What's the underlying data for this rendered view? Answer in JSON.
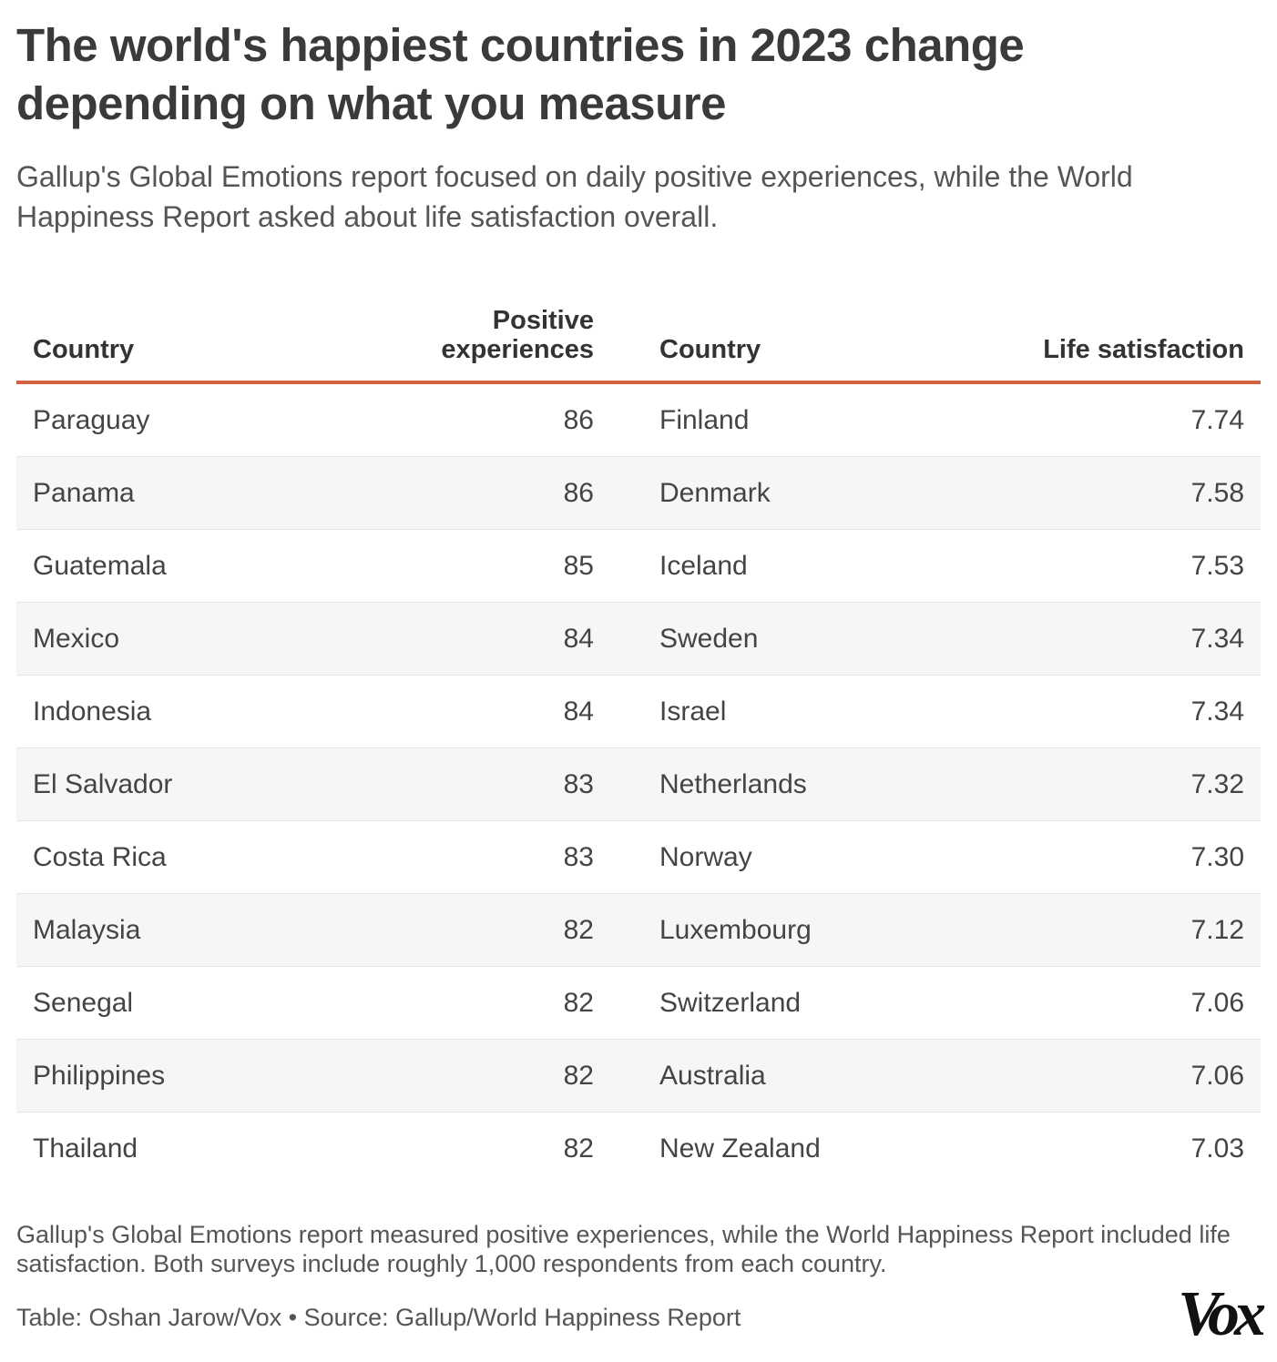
{
  "chart_data": {
    "type": "table",
    "title": "The world's happiest countries in 2023 change depending on what you measure",
    "subtitle": "Gallup's Global Emotions report focused on daily positive experiences, while the World Happiness Report asked about life satisfaction overall.",
    "columns": [
      "Country",
      "Positive experiences",
      "Country",
      "Life satisfaction"
    ],
    "rows": [
      [
        "Paraguay",
        "86",
        "Finland",
        "7.74"
      ],
      [
        "Panama",
        "86",
        "Denmark",
        "7.58"
      ],
      [
        "Guatemala",
        "85",
        "Iceland",
        "7.53"
      ],
      [
        "Mexico",
        "84",
        "Sweden",
        "7.34"
      ],
      [
        "Indonesia",
        "84",
        "Israel",
        "7.34"
      ],
      [
        "El Salvador",
        "83",
        "Netherlands",
        "7.32"
      ],
      [
        "Costa Rica",
        "83",
        "Norway",
        "7.30"
      ],
      [
        "Malaysia",
        "82",
        "Luxembourg",
        "7.12"
      ],
      [
        "Senegal",
        "82",
        "Switzerland",
        "7.06"
      ],
      [
        "Philippines",
        "82",
        "Australia",
        "7.06"
      ],
      [
        "Thailand",
        "82",
        "New Zealand",
        "7.03"
      ]
    ],
    "note": "Gallup's Global Emotions report measured positive experiences, while the World Happiness Report included life satisfaction. Both surveys include roughly 1,000 respondents from each country.",
    "source": "Table: Oshan Jarow/Vox • Source: Gallup/World Happiness Report"
  },
  "header": {
    "col1": "Country",
    "col2_line1": "Positive",
    "col2_line2": "experiences",
    "col3": "Country",
    "col4": "Life satisfaction"
  },
  "logo_text": "Vox",
  "colors": {
    "accent_rule": "#d0623f",
    "stripe": "#f6f6f6",
    "text": "#333333"
  }
}
